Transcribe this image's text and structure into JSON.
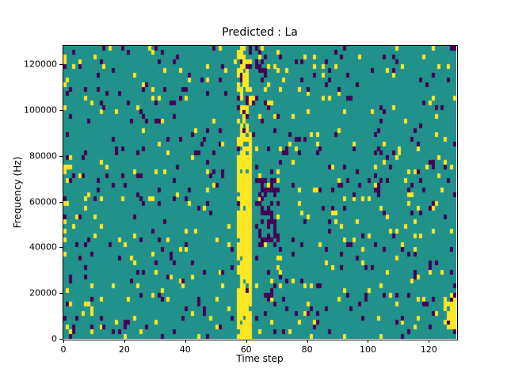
{
  "chart_data": {
    "type": "heatmap",
    "title": "Predicted : La",
    "xlabel": "Time step",
    "ylabel": "Frequency (Hz)",
    "x_ticks": [
      0,
      20,
      40,
      60,
      80,
      100,
      120
    ],
    "y_ticks": [
      0,
      20000,
      40000,
      60000,
      80000,
      100000,
      120000
    ],
    "xlim": [
      0,
      129
    ],
    "ylim": [
      0,
      128000
    ],
    "grid": {
      "cols": 129,
      "rows": 64,
      "freq_step": 2000,
      "gridlines": "off"
    },
    "legend": "none",
    "colors": {
      "background_teal": "#21918c",
      "yellow": "#fde725",
      "purple": "#440154",
      "figure_bg": "#ffffff",
      "axis": "#000000"
    },
    "noise": {
      "yellow": 0.035,
      "purple": 0.04
    },
    "seed": 42,
    "features": [
      {
        "name": "yellow-band-core",
        "cols": [
          57,
          62
        ],
        "freqs": [
          0,
          88000
        ],
        "yellow": 0.88,
        "purple": 0.02
      },
      {
        "name": "yellow-band-upper",
        "cols": [
          57,
          62
        ],
        "freqs": [
          88000,
          128000
        ],
        "yellow": 0.45,
        "purple": 0.1
      },
      {
        "name": "purple-cluster-mid",
        "cols": [
          64,
          71
        ],
        "freqs": [
          40000,
          70000
        ],
        "yellow": 0.05,
        "purple": 0.45
      },
      {
        "name": "purple-streak-top",
        "cols": [
          63,
          67
        ],
        "freqs": [
          100000,
          128000
        ],
        "yellow": 0.05,
        "purple": 0.3
      },
      {
        "name": "purple-streak-low",
        "cols": [
          66,
          70
        ],
        "freqs": [
          8000,
          30000
        ],
        "yellow": 0.04,
        "purple": 0.22
      },
      {
        "name": "right-edge-yellow",
        "cols": [
          125,
          129
        ],
        "freqs": [
          4000,
          20000
        ],
        "yellow": 0.7,
        "purple": 0.03
      },
      {
        "name": "left-edge-speckle",
        "cols": [
          0,
          3
        ],
        "freqs": [
          0,
          128000
        ],
        "yellow": 0.13,
        "purple": 0.06
      }
    ]
  }
}
